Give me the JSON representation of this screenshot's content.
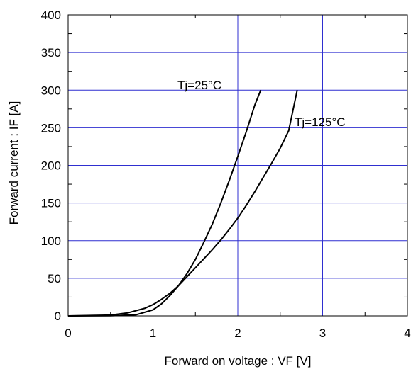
{
  "chart_data": {
    "type": "line",
    "xlabel": "Forward on voltage : VF [V]",
    "ylabel": "Forward current : IF [A]",
    "xlim": [
      0,
      4
    ],
    "ylim": [
      0,
      400
    ],
    "x_ticks": [
      "0",
      "1",
      "2",
      "3",
      "4"
    ],
    "y_ticks": [
      "0",
      "50",
      "100",
      "150",
      "200",
      "250",
      "300",
      "350",
      "400"
    ],
    "x_tick_values": [
      0,
      1,
      2,
      3,
      4
    ],
    "y_tick_values": [
      0,
      50,
      100,
      150,
      200,
      250,
      300,
      350,
      400
    ],
    "grid": true,
    "grid_color": "#2f2fd0",
    "line_color": "#000000",
    "series": [
      {
        "name": "Tj=25°C",
        "points": [
          [
            0.0,
            0
          ],
          [
            0.5,
            0.2
          ],
          [
            0.8,
            1.5
          ],
          [
            1.0,
            8
          ],
          [
            1.1,
            16
          ],
          [
            1.2,
            27
          ],
          [
            1.3,
            40
          ],
          [
            1.4,
            56
          ],
          [
            1.5,
            75
          ],
          [
            1.6,
            98
          ],
          [
            1.7,
            122
          ],
          [
            1.8,
            150
          ],
          [
            1.9,
            180
          ],
          [
            2.0,
            212
          ],
          [
            2.1,
            245
          ],
          [
            2.2,
            280
          ],
          [
            2.27,
            300
          ]
        ]
      },
      {
        "name": "Tj=125°C",
        "points": [
          [
            0.0,
            0
          ],
          [
            0.5,
            1
          ],
          [
            0.7,
            4
          ],
          [
            0.9,
            10
          ],
          [
            1.0,
            15
          ],
          [
            1.1,
            22
          ],
          [
            1.2,
            30
          ],
          [
            1.3,
            40
          ],
          [
            1.4,
            52
          ],
          [
            1.5,
            64
          ],
          [
            1.6,
            76
          ],
          [
            1.7,
            88
          ],
          [
            1.8,
            101
          ],
          [
            1.9,
            115
          ],
          [
            2.0,
            130
          ],
          [
            2.1,
            147
          ],
          [
            2.2,
            165
          ],
          [
            2.3,
            184
          ],
          [
            2.4,
            203
          ],
          [
            2.5,
            223
          ],
          [
            2.6,
            246
          ],
          [
            2.7,
            300
          ]
        ]
      }
    ],
    "annotations": [
      "Tj=25°C",
      "Tj=125°C"
    ]
  }
}
